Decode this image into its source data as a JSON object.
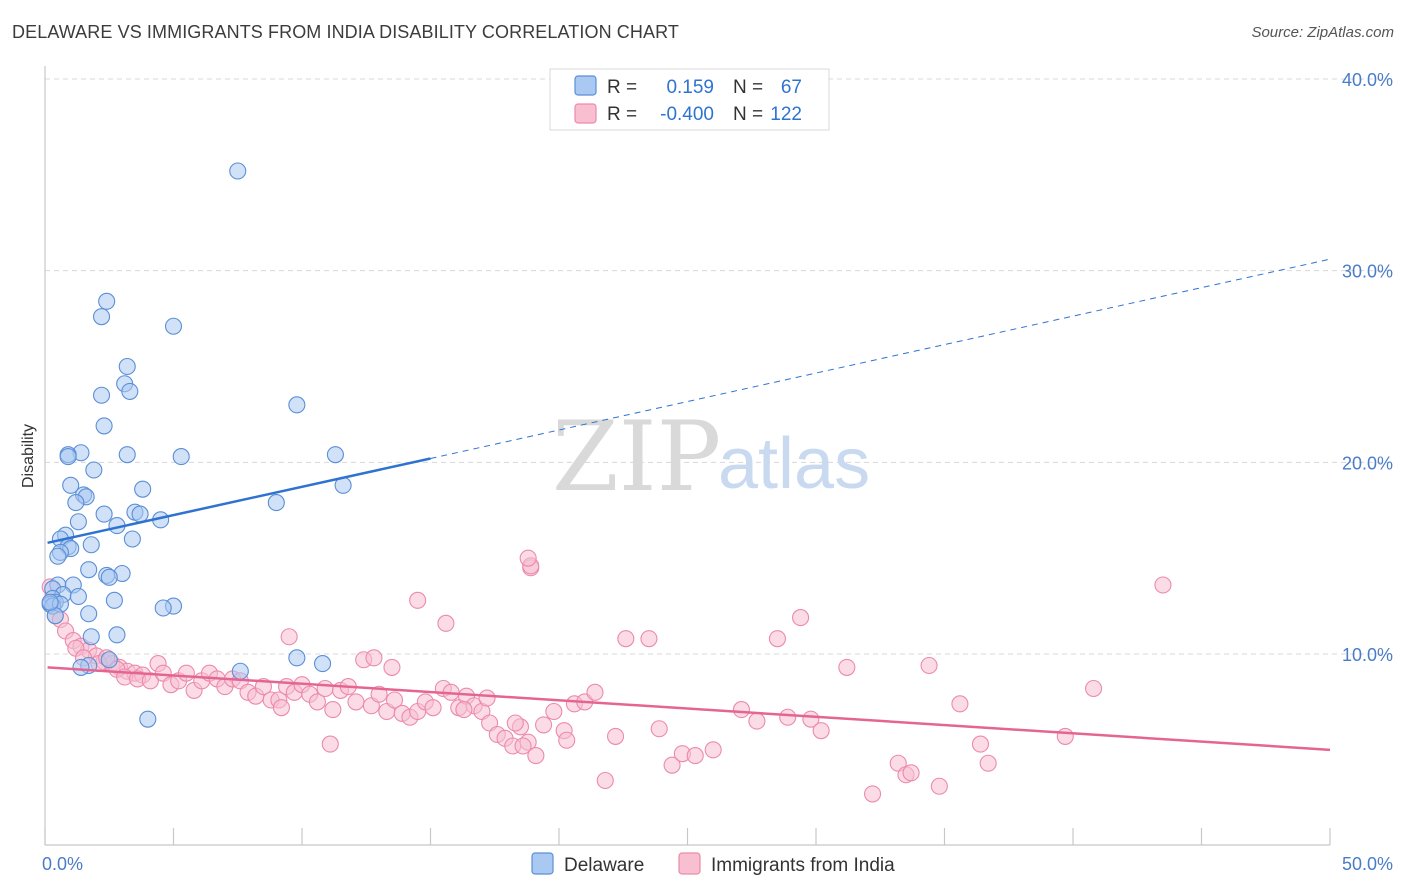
{
  "title": "DELAWARE VS IMMIGRANTS FROM INDIA DISABILITY CORRELATION CHART",
  "source": "Source: ZipAtlas.com",
  "watermark": {
    "zip": "ZIP",
    "atlas": "atlas"
  },
  "colors": {
    "blue_fill": "#a9c8f2",
    "blue_stroke": "#5b8fd6",
    "blue_line": "#2f73d0",
    "pink_fill": "#f8bfd1",
    "pink_stroke": "#ec8aac",
    "pink_line": "#e56592",
    "tick_text": "#4a7cc8",
    "grid": "#d8d8d8"
  },
  "legend_top": [
    {
      "series": "blue",
      "r_label": "R =",
      "r_value": "0.159",
      "n_label": "N =",
      "n_value": "67"
    },
    {
      "series": "pink",
      "r_label": "R =",
      "r_value": "-0.400",
      "n_label": "N =",
      "n_value": "122"
    }
  ],
  "legend_bottom": [
    {
      "series": "blue",
      "label": "Delaware"
    },
    {
      "series": "pink",
      "label": "Immigrants from India"
    }
  ],
  "chart_data": {
    "type": "scatter",
    "title": "DELAWARE VS IMMIGRANTS FROM INDIA DISABILITY CORRELATION CHART",
    "xlabel": "",
    "ylabel": "Disability",
    "xlim": [
      0,
      50
    ],
    "ylim": [
      0,
      42
    ],
    "x_tick_labels": {
      "min": "0.0%",
      "max": "50.0%"
    },
    "y_ticks": [
      10,
      20,
      30,
      40
    ],
    "y_tick_labels": [
      "10.0%",
      "20.0%",
      "30.0%",
      "40.0%"
    ],
    "grid": "horizontal dashed",
    "legend_position": "top-center and bottom-center",
    "series": [
      {
        "name": "Delaware",
        "color": "#a9c8f2",
        "r": 0.159,
        "n": 67,
        "trend": {
          "x0": 0.1,
          "y0": 15.8,
          "x1": 15,
          "y1": 20.2,
          "dashed_to_x": 50,
          "dashed_to_y": 30.6
        },
        "points": [
          [
            7.5,
            35.2
          ],
          [
            2.4,
            28.4
          ],
          [
            2.2,
            27.6
          ],
          [
            5.0,
            27.1
          ],
          [
            3.2,
            25.0
          ],
          [
            3.1,
            24.1
          ],
          [
            3.3,
            23.7
          ],
          [
            2.2,
            23.5
          ],
          [
            9.8,
            23.0
          ],
          [
            2.3,
            21.9
          ],
          [
            1.4,
            20.5
          ],
          [
            0.9,
            20.4
          ],
          [
            0.9,
            20.3
          ],
          [
            3.2,
            20.4
          ],
          [
            5.3,
            20.3
          ],
          [
            11.3,
            20.4
          ],
          [
            1.9,
            19.6
          ],
          [
            11.6,
            18.8
          ],
          [
            1.0,
            18.8
          ],
          [
            3.8,
            18.6
          ],
          [
            1.5,
            18.3
          ],
          [
            1.6,
            18.2
          ],
          [
            1.2,
            17.9
          ],
          [
            9.0,
            17.9
          ],
          [
            2.3,
            17.3
          ],
          [
            3.5,
            17.4
          ],
          [
            3.7,
            17.3
          ],
          [
            4.5,
            17.0
          ],
          [
            1.3,
            16.9
          ],
          [
            2.8,
            16.7
          ],
          [
            0.8,
            16.2
          ],
          [
            0.6,
            16.0
          ],
          [
            3.4,
            16.0
          ],
          [
            1.8,
            15.7
          ],
          [
            0.9,
            15.6
          ],
          [
            1.0,
            15.5
          ],
          [
            0.6,
            15.3
          ],
          [
            0.5,
            15.1
          ],
          [
            1.7,
            14.4
          ],
          [
            3.0,
            14.2
          ],
          [
            2.4,
            14.1
          ],
          [
            2.5,
            14.0
          ],
          [
            0.5,
            13.6
          ],
          [
            0.3,
            13.4
          ],
          [
            1.1,
            13.6
          ],
          [
            0.7,
            13.1
          ],
          [
            1.3,
            13.0
          ],
          [
            0.3,
            12.9
          ],
          [
            2.7,
            12.8
          ],
          [
            0.4,
            12.7
          ],
          [
            0.2,
            12.6
          ],
          [
            0.3,
            12.5
          ],
          [
            0.6,
            12.6
          ],
          [
            5.0,
            12.5
          ],
          [
            4.6,
            12.4
          ],
          [
            1.7,
            12.1
          ],
          [
            0.4,
            12.0
          ],
          [
            2.8,
            11.0
          ],
          [
            1.8,
            10.9
          ],
          [
            9.8,
            9.8
          ],
          [
            10.8,
            9.5
          ],
          [
            2.5,
            9.7
          ],
          [
            1.7,
            9.4
          ],
          [
            1.4,
            9.3
          ],
          [
            7.6,
            9.1
          ],
          [
            4.0,
            6.6
          ],
          [
            0.2,
            12.7
          ]
        ]
      },
      {
        "name": "Immigrants from India",
        "color": "#f8bfd1",
        "r": -0.4,
        "n": 122,
        "trend": {
          "x0": 0.1,
          "y0": 9.3,
          "x1": 50,
          "y1": 5.0
        },
        "points": [
          [
            0.2,
            13.5
          ],
          [
            0.3,
            12.7
          ],
          [
            0.4,
            12.0
          ],
          [
            0.6,
            11.8
          ],
          [
            0.8,
            11.2
          ],
          [
            1.1,
            10.7
          ],
          [
            1.4,
            10.4
          ],
          [
            1.7,
            10.2
          ],
          [
            2.0,
            9.9
          ],
          [
            2.3,
            9.6
          ],
          [
            2.6,
            9.5
          ],
          [
            2.9,
            9.3
          ],
          [
            3.2,
            9.1
          ],
          [
            3.5,
            9.0
          ],
          [
            3.8,
            8.9
          ],
          [
            1.2,
            10.3
          ],
          [
            1.5,
            9.8
          ],
          [
            2.1,
            9.5
          ],
          [
            2.4,
            9.8
          ],
          [
            2.8,
            9.2
          ],
          [
            3.1,
            8.8
          ],
          [
            3.6,
            8.7
          ],
          [
            4.1,
            8.6
          ],
          [
            4.4,
            9.5
          ],
          [
            4.6,
            9.0
          ],
          [
            4.9,
            8.4
          ],
          [
            5.2,
            8.6
          ],
          [
            5.5,
            9.0
          ],
          [
            5.8,
            8.1
          ],
          [
            6.1,
            8.6
          ],
          [
            6.4,
            9.0
          ],
          [
            6.7,
            8.7
          ],
          [
            7.0,
            8.3
          ],
          [
            7.3,
            8.7
          ],
          [
            7.6,
            8.6
          ],
          [
            7.9,
            8.0
          ],
          [
            8.2,
            7.8
          ],
          [
            8.5,
            8.3
          ],
          [
            8.8,
            7.6
          ],
          [
            9.1,
            7.6
          ],
          [
            9.4,
            8.3
          ],
          [
            9.7,
            8.0
          ],
          [
            10.0,
            8.4
          ],
          [
            10.3,
            7.9
          ],
          [
            10.6,
            7.5
          ],
          [
            10.9,
            8.2
          ],
          [
            11.2,
            7.1
          ],
          [
            11.5,
            8.1
          ],
          [
            11.8,
            8.3
          ],
          [
            12.1,
            7.5
          ],
          [
            12.4,
            9.7
          ],
          [
            12.7,
            7.3
          ],
          [
            13.0,
            7.9
          ],
          [
            13.3,
            7.0
          ],
          [
            13.6,
            7.6
          ],
          [
            13.9,
            6.9
          ],
          [
            14.2,
            6.7
          ],
          [
            14.5,
            7.0
          ],
          [
            14.8,
            7.5
          ],
          [
            15.1,
            7.2
          ],
          [
            15.5,
            8.2
          ],
          [
            15.8,
            8.0
          ],
          [
            16.1,
            7.2
          ],
          [
            16.4,
            7.8
          ],
          [
            16.7,
            7.3
          ],
          [
            17.0,
            7.0
          ],
          [
            17.3,
            6.4
          ],
          [
            17.6,
            5.8
          ],
          [
            17.9,
            5.6
          ],
          [
            18.2,
            5.2
          ],
          [
            18.5,
            6.2
          ],
          [
            18.8,
            5.4
          ],
          [
            19.1,
            4.7
          ],
          [
            19.4,
            6.3
          ],
          [
            19.8,
            7.0
          ],
          [
            20.2,
            6.0
          ],
          [
            20.6,
            7.4
          ],
          [
            21.0,
            7.5
          ],
          [
            21.4,
            8.0
          ],
          [
            21.8,
            3.4
          ],
          [
            22.2,
            5.7
          ],
          [
            22.6,
            10.8
          ],
          [
            23.5,
            10.8
          ],
          [
            23.9,
            6.1
          ],
          [
            24.4,
            4.2
          ],
          [
            24.8,
            4.8
          ],
          [
            25.3,
            4.7
          ],
          [
            26.0,
            5.0
          ],
          [
            27.1,
            7.1
          ],
          [
            27.7,
            6.5
          ],
          [
            28.5,
            10.8
          ],
          [
            28.9,
            6.7
          ],
          [
            29.4,
            11.9
          ],
          [
            29.8,
            6.6
          ],
          [
            30.2,
            6.0
          ],
          [
            31.2,
            9.3
          ],
          [
            32.2,
            2.7
          ],
          [
            33.2,
            4.3
          ],
          [
            33.5,
            3.7
          ],
          [
            33.7,
            3.8
          ],
          [
            34.4,
            9.4
          ],
          [
            34.8,
            3.1
          ],
          [
            35.6,
            7.4
          ],
          [
            36.4,
            5.3
          ],
          [
            36.7,
            4.3
          ],
          [
            39.7,
            5.7
          ],
          [
            40.8,
            8.2
          ],
          [
            43.5,
            13.6
          ],
          [
            18.9,
            14.5
          ],
          [
            18.9,
            14.6
          ],
          [
            14.5,
            12.8
          ],
          [
            15.6,
            11.6
          ],
          [
            18.6,
            5.2
          ],
          [
            20.3,
            5.5
          ],
          [
            9.5,
            10.9
          ],
          [
            11.1,
            5.3
          ],
          [
            12.8,
            9.8
          ],
          [
            13.5,
            9.3
          ],
          [
            16.3,
            7.1
          ],
          [
            17.2,
            7.7
          ],
          [
            9.2,
            7.2
          ],
          [
            18.3,
            6.4
          ],
          [
            18.8,
            15.0
          ]
        ]
      }
    ]
  }
}
